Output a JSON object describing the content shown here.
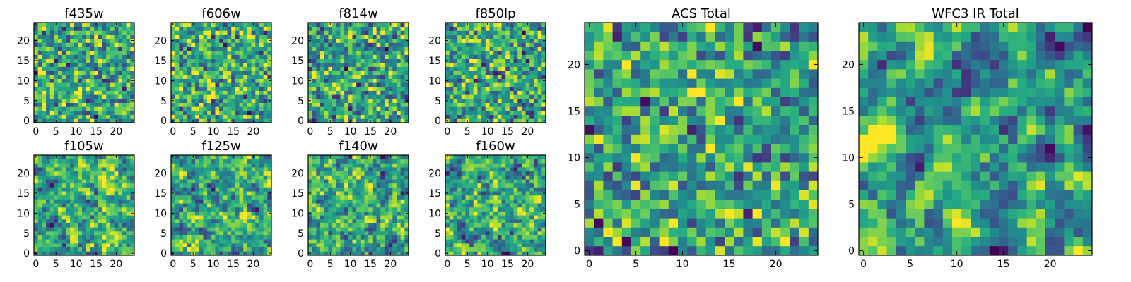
{
  "figure_colors": {
    "colormap": "viridis",
    "stops": [
      "#440154",
      "#472c7a",
      "#3b528b",
      "#2c728e",
      "#21908d",
      "#27ad81",
      "#5cc863",
      "#aadc32",
      "#fde725"
    ],
    "frame": "#000000",
    "background": "#ffffff"
  },
  "chart_data": [
    {
      "type": "heatmap",
      "title": "f435w",
      "grid": [
        25,
        25
      ],
      "xlim": [
        -0.5,
        24.5
      ],
      "ylim": [
        -0.5,
        24.5
      ],
      "xticks": [
        "0",
        "5",
        "10",
        "15",
        "20"
      ],
      "yticks": [
        "0",
        "5",
        "10",
        "15",
        "20"
      ],
      "value_range": [
        0,
        1
      ],
      "seed": 11,
      "mean": 0.6,
      "spread": 0.3,
      "smooth": 0
    },
    {
      "type": "heatmap",
      "title": "f606w",
      "grid": [
        25,
        25
      ],
      "xlim": [
        -0.5,
        24.5
      ],
      "ylim": [
        -0.5,
        24.5
      ],
      "xticks": [
        "0",
        "5",
        "10",
        "15",
        "20"
      ],
      "yticks": [
        "0",
        "5",
        "10",
        "15",
        "20"
      ],
      "value_range": [
        0,
        1
      ],
      "seed": 23,
      "mean": 0.62,
      "spread": 0.3,
      "smooth": 0
    },
    {
      "type": "heatmap",
      "title": "f814w",
      "grid": [
        25,
        25
      ],
      "xlim": [
        -0.5,
        24.5
      ],
      "ylim": [
        -0.5,
        24.5
      ],
      "xticks": [
        "0",
        "5",
        "10",
        "15",
        "20"
      ],
      "yticks": [
        "0",
        "5",
        "10",
        "15",
        "20"
      ],
      "value_range": [
        0,
        1
      ],
      "seed": 37,
      "mean": 0.58,
      "spread": 0.3,
      "smooth": 0
    },
    {
      "type": "heatmap",
      "title": "f850lp",
      "grid": [
        25,
        25
      ],
      "xlim": [
        -0.5,
        24.5
      ],
      "ylim": [
        -0.5,
        24.5
      ],
      "xticks": [
        "0",
        "5",
        "10",
        "15",
        "20"
      ],
      "yticks": [
        "0",
        "5",
        "10",
        "15",
        "20"
      ],
      "value_range": [
        0,
        1
      ],
      "seed": 41,
      "mean": 0.6,
      "spread": 0.3,
      "smooth": 0
    },
    {
      "type": "heatmap",
      "title": "f105w",
      "grid": [
        25,
        25
      ],
      "xlim": [
        -0.5,
        24.5
      ],
      "ylim": [
        -0.5,
        24.5
      ],
      "xticks": [
        "0",
        "5",
        "10",
        "15",
        "20"
      ],
      "yticks": [
        "0",
        "5",
        "10",
        "15",
        "20"
      ],
      "value_range": [
        0,
        1
      ],
      "seed": 53,
      "mean": 0.62,
      "spread": 0.26,
      "smooth": 1
    },
    {
      "type": "heatmap",
      "title": "f125w",
      "grid": [
        25,
        25
      ],
      "xlim": [
        -0.5,
        24.5
      ],
      "ylim": [
        -0.5,
        24.5
      ],
      "xticks": [
        "0",
        "5",
        "10",
        "15",
        "20"
      ],
      "yticks": [
        "0",
        "5",
        "10",
        "15",
        "20"
      ],
      "value_range": [
        0,
        1
      ],
      "seed": 67,
      "mean": 0.6,
      "spread": 0.26,
      "smooth": 1
    },
    {
      "type": "heatmap",
      "title": "f140w",
      "grid": [
        25,
        25
      ],
      "xlim": [
        -0.5,
        24.5
      ],
      "ylim": [
        -0.5,
        24.5
      ],
      "xticks": [
        "0",
        "5",
        "10",
        "15",
        "20"
      ],
      "yticks": [
        "0",
        "5",
        "10",
        "15",
        "20"
      ],
      "value_range": [
        0,
        1
      ],
      "seed": 79,
      "mean": 0.6,
      "spread": 0.26,
      "smooth": 1
    },
    {
      "type": "heatmap",
      "title": "f160w",
      "grid": [
        25,
        25
      ],
      "xlim": [
        -0.5,
        24.5
      ],
      "ylim": [
        -0.5,
        24.5
      ],
      "xticks": [
        "0",
        "5",
        "10",
        "15",
        "20"
      ],
      "yticks": [
        "0",
        "5",
        "10",
        "15",
        "20"
      ],
      "value_range": [
        0,
        1
      ],
      "seed": 83,
      "mean": 0.6,
      "spread": 0.26,
      "smooth": 1
    },
    {
      "type": "heatmap",
      "title": "ACS Total",
      "grid": [
        25,
        25
      ],
      "xlim": [
        -0.5,
        24.5
      ],
      "ylim": [
        -0.5,
        24.5
      ],
      "xticks": [
        "0",
        "5",
        "10",
        "15",
        "20"
      ],
      "yticks": [
        "0",
        "5",
        "10",
        "15",
        "20"
      ],
      "value_range": [
        0,
        1
      ],
      "seed": 97,
      "mean": 0.58,
      "spread": 0.3,
      "smooth": 0
    },
    {
      "type": "heatmap",
      "title": "WFC3 IR Total",
      "grid": [
        25,
        25
      ],
      "xlim": [
        -0.5,
        24.5
      ],
      "ylim": [
        -0.5,
        24.5
      ],
      "xticks": [
        "0",
        "5",
        "10",
        "15",
        "20"
      ],
      "yticks": [
        "0",
        "5",
        "10",
        "15",
        "20"
      ],
      "value_range": [
        0,
        1
      ],
      "seed": 101,
      "mean": 0.55,
      "spread": 0.28,
      "smooth": 2
    }
  ]
}
